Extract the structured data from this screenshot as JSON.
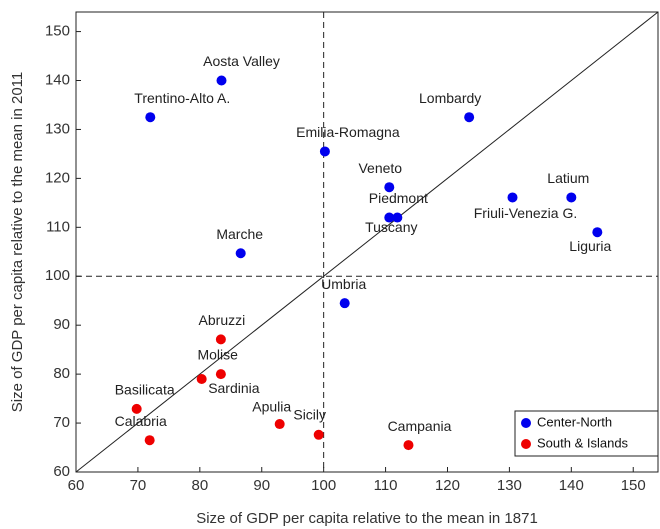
{
  "chart_data": {
    "type": "scatter",
    "x_label": "Size of GDP per capita relative to the mean in 1871",
    "y_label": "Size of GDP per capita relative to the mean in 2011",
    "xlim": [
      60,
      154
    ],
    "ylim": [
      60,
      154
    ],
    "xticks": [
      60,
      70,
      80,
      90,
      100,
      110,
      120,
      130,
      140,
      150
    ],
    "yticks": [
      60,
      70,
      80,
      90,
      100,
      110,
      120,
      130,
      140,
      150
    ],
    "reference_x": 100,
    "reference_y": 100,
    "legend": "lower right",
    "series": [
      {
        "name": "Center-North",
        "color": "#0000ee",
        "labels": [
          "Aosta Valley",
          "Trentino-Alto A.",
          "Lombardy",
          "Emilia-Romagna",
          "Veneto",
          "Piedmont",
          "Tuscany",
          "Friuli-Venezia G.",
          "Latium",
          "Liguria",
          "Marche",
          "Umbria"
        ],
        "x": [
          83.5,
          72,
          123.5,
          100.2,
          110.6,
          111.9,
          110.6,
          130.5,
          140,
          144.2,
          86.6,
          103.4
        ],
        "values": [
          140,
          132.5,
          132.5,
          125.5,
          118.2,
          112,
          112,
          116.1,
          116.1,
          109,
          104.7,
          94.5
        ]
      },
      {
        "name": "South & Islands",
        "color": "#ee0000",
        "labels": [
          "Abruzzi",
          "Molise",
          "Sardinia",
          "Basilicata",
          "Calabria",
          "Apulia",
          "Sicily",
          "Campania"
        ],
        "x": [
          83.4,
          80.3,
          83.4,
          69.8,
          71.9,
          92.9,
          99.2,
          113.7
        ],
        "values": [
          87.1,
          79,
          80,
          72.9,
          66.5,
          69.8,
          67.6,
          65.5
        ]
      }
    ]
  }
}
